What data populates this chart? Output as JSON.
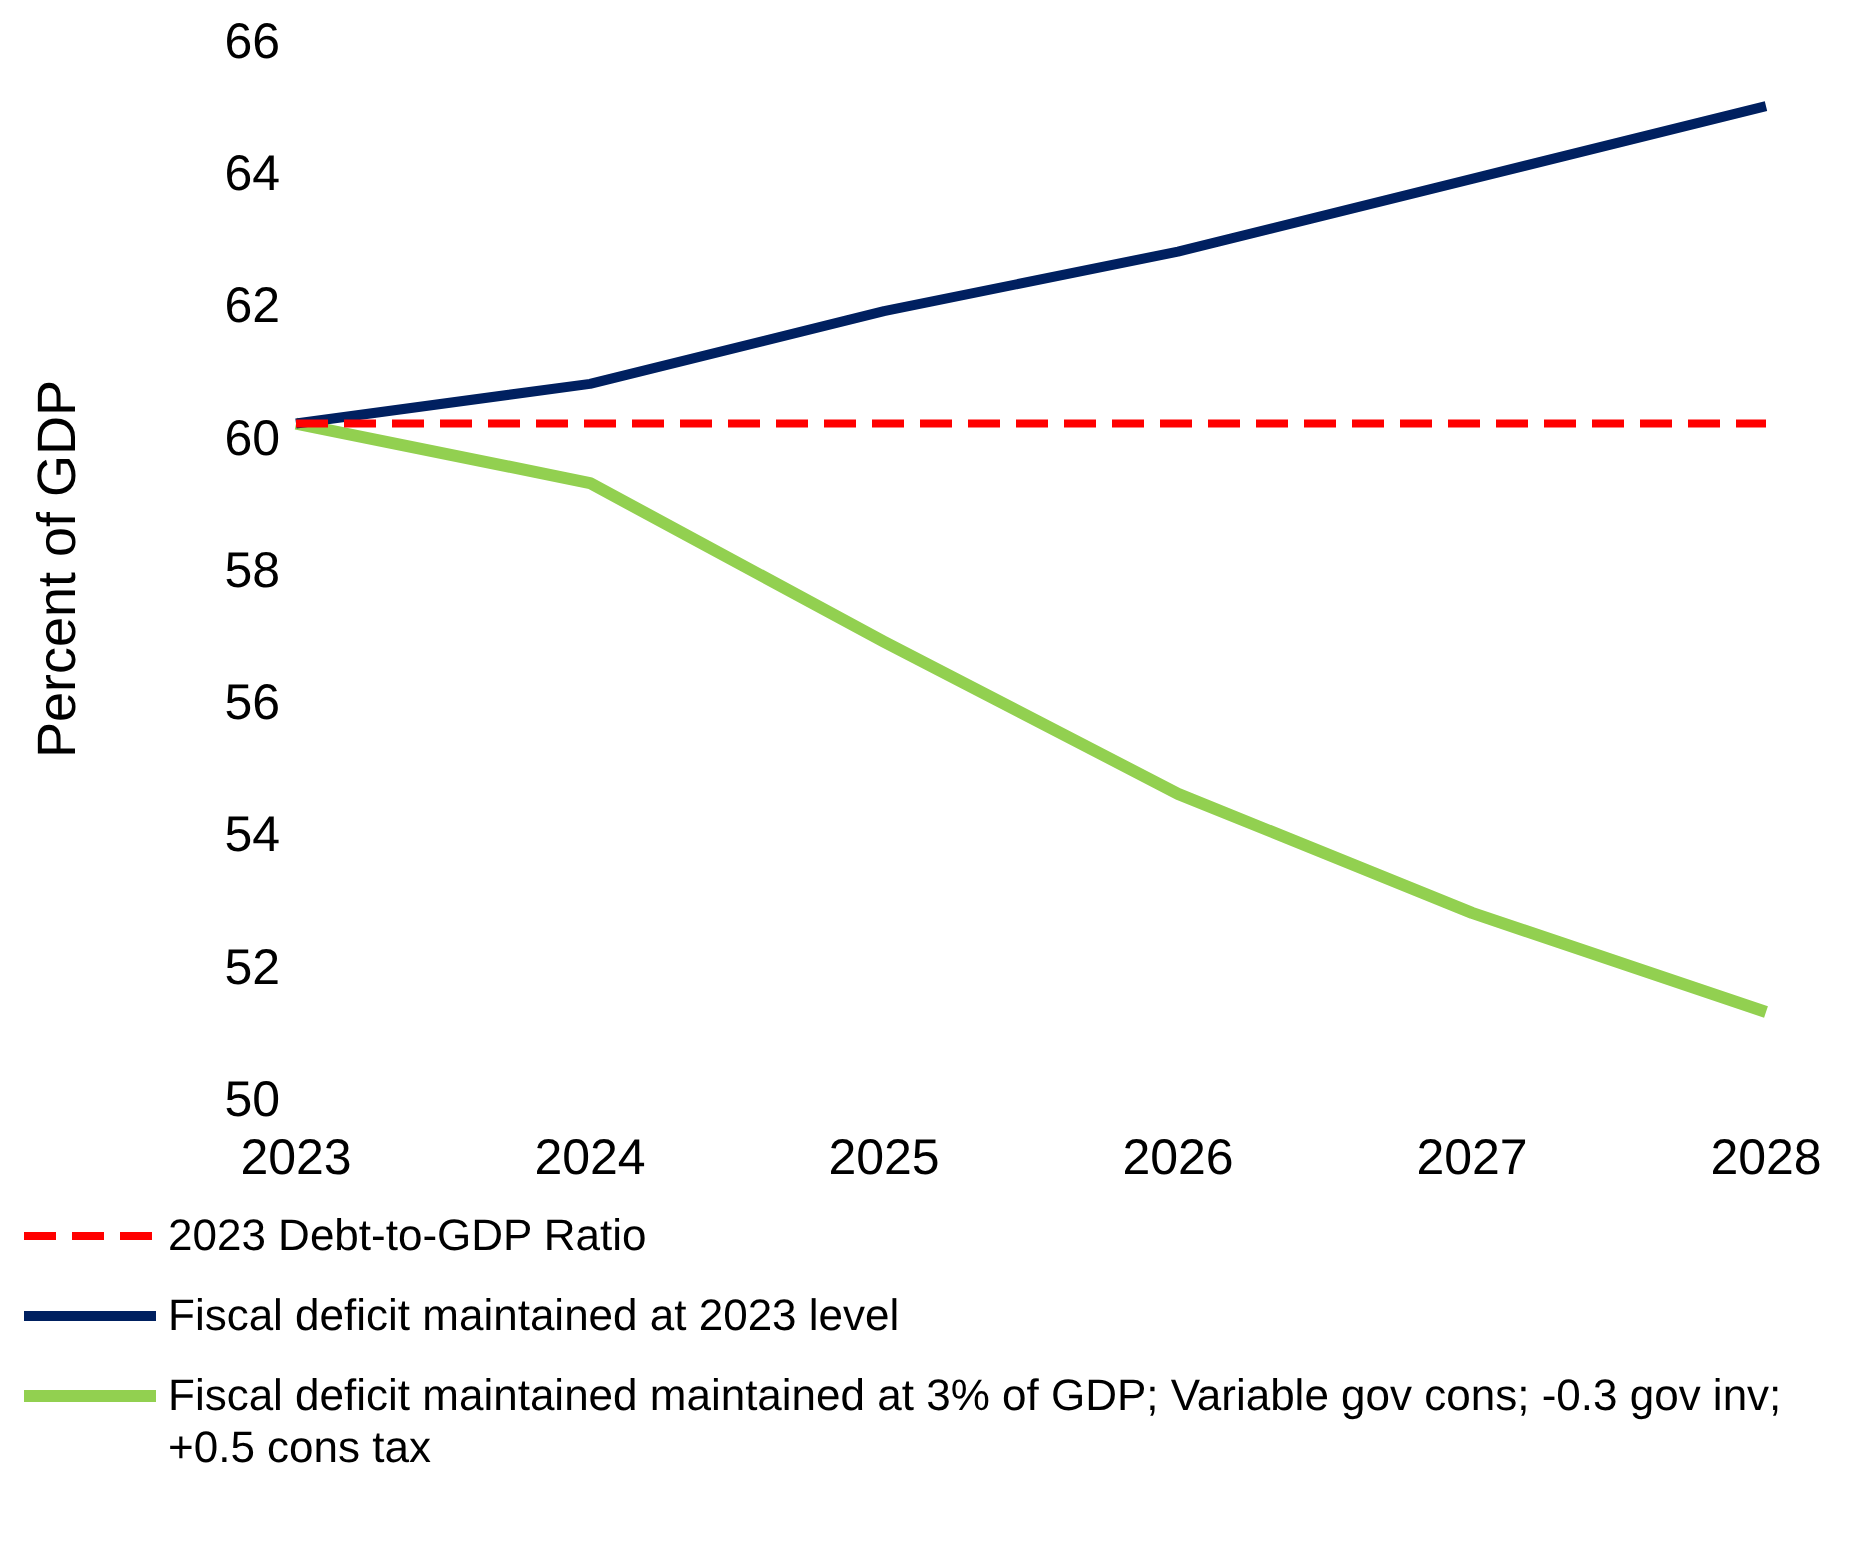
{
  "chart_data": {
    "type": "line",
    "ylabel": "Percent of GDP",
    "categories": [
      "2023",
      "2024",
      "2025",
      "2026",
      "2027",
      "2028"
    ],
    "series": [
      {
        "name": "2023 Debt-to-GDP Ratio",
        "color": "#ff0000",
        "line_style": "dashed",
        "values": [
          60.2,
          60.2,
          60.2,
          60.2,
          60.2,
          60.2
        ]
      },
      {
        "name": "Fiscal deficit maintained at 2023 level",
        "color": "#002060",
        "line_style": "solid",
        "values": [
          60.2,
          60.8,
          61.9,
          62.8,
          63.9,
          65.0
        ]
      },
      {
        "name": "Fiscal deficit maintained maintained at 3% of GDP; Variable gov cons; -0.3 gov inv; +0.5 cons tax",
        "color": "#92d050",
        "line_style": "solid",
        "values": [
          60.2,
          59.3,
          56.9,
          54.6,
          52.8,
          51.3
        ]
      }
    ],
    "ylim": [
      50,
      66
    ],
    "yticks": [
      50,
      52,
      54,
      56,
      58,
      60,
      62,
      64,
      66
    ],
    "grid": false,
    "legend": "bottom",
    "marker": "none"
  }
}
